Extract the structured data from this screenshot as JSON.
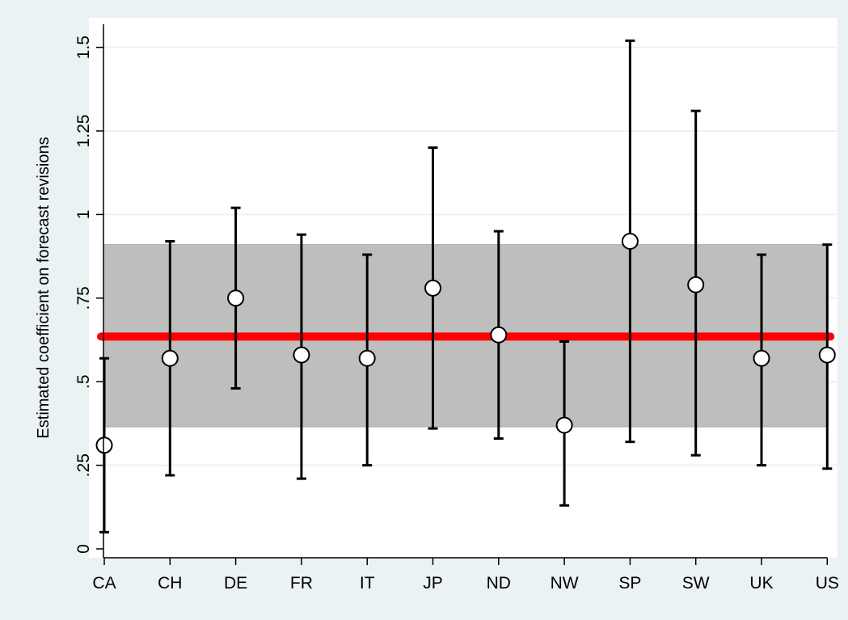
{
  "chart_data": {
    "type": "scatter",
    "title": "",
    "xlabel": "",
    "ylabel": "Estimated coefficient on forecast revisions",
    "ylim": [
      -0.03,
      1.56
    ],
    "grid": true,
    "legend": "none",
    "categories": [
      "CA",
      "CH",
      "DE",
      "FR",
      "IT",
      "JP",
      "ND",
      "NW",
      "SP",
      "SW",
      "UK",
      "US"
    ],
    "yticks": [
      {
        "value": 0,
        "label": "0"
      },
      {
        "value": 0.25,
        "label": ".25"
      },
      {
        "value": 0.5,
        "label": ".5"
      },
      {
        "value": 0.75,
        "label": ".75"
      },
      {
        "value": 1,
        "label": "1"
      },
      {
        "value": 1.25,
        "label": "1.25"
      },
      {
        "value": 1.5,
        "label": "1.5"
      }
    ],
    "series": [
      {
        "estimate": [
          0.31,
          0.57,
          0.75,
          0.58,
          0.57,
          0.78,
          0.64,
          0.37,
          0.92,
          0.79,
          0.57,
          0.58
        ],
        "ci_low": [
          0.05,
          0.22,
          0.48,
          0.21,
          0.25,
          0.36,
          0.33,
          0.13,
          0.32,
          0.28,
          0.25,
          0.24
        ],
        "ci_high": [
          0.57,
          0.92,
          1.02,
          0.94,
          0.88,
          1.2,
          0.95,
          0.62,
          1.52,
          1.31,
          0.88,
          0.91
        ]
      }
    ],
    "pooled": {
      "estimate": 0.635,
      "ci_low": 0.365,
      "ci_high": 0.91
    },
    "colors": {
      "background": "#eaf2f3",
      "plot": "#ffffff",
      "band": "#bebebe",
      "pooled_line": "#ff0000",
      "error_bar": "#000000",
      "marker_fill": "#ffffff",
      "grid": "#eaf2f3"
    }
  }
}
